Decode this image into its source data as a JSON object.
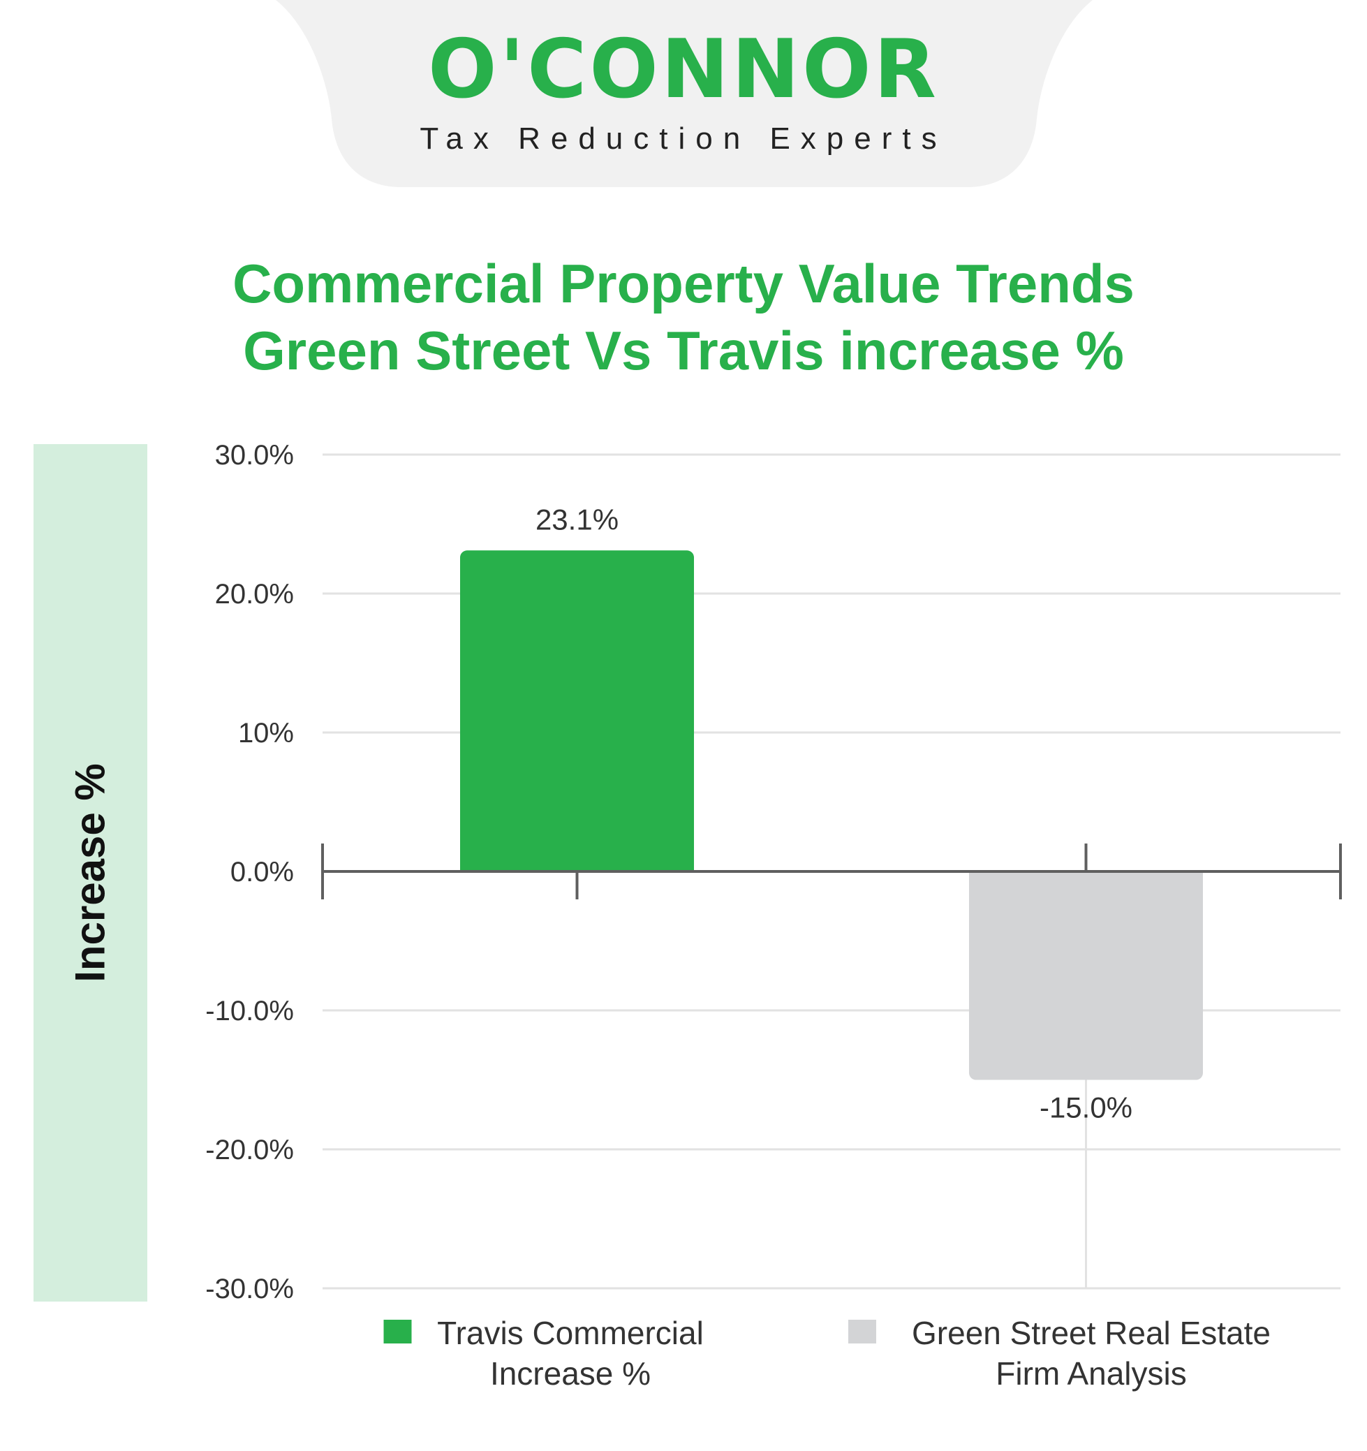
{
  "brand": {
    "name": "O'CONNOR",
    "tagline": "Tax Reduction Experts",
    "color": "#28b04b",
    "header_bg": "#f1f1f1"
  },
  "chart_data": {
    "type": "bar",
    "title_lines": [
      "Commercial Property Value Trends",
      "Green Street Vs Travis increase %"
    ],
    "ylabel": "Increase %",
    "xlabel": "",
    "ylim": [
      -30,
      30
    ],
    "yticks": [
      {
        "value": 30,
        "label": "30.0%"
      },
      {
        "value": 20,
        "label": "20.0%"
      },
      {
        "value": 10,
        "label": "10%"
      },
      {
        "value": 0,
        "label": "0.0%"
      },
      {
        "value": -10,
        "label": "-10.0%"
      },
      {
        "value": -20,
        "label": "-20.0%"
      },
      {
        "value": -30,
        "label": "-30.0%"
      }
    ],
    "grid": true,
    "legend_position": "bottom",
    "series": [
      {
        "name_lines": [
          "Travis Commercial",
          "Increase %"
        ],
        "value": 23.1,
        "label": "23.1%",
        "color": "#28b04b"
      },
      {
        "name_lines": [
          "Green Street Real Estate",
          "Firm Analysis"
        ],
        "value": -15.0,
        "label": "-15.0%",
        "color": "#d3d4d6"
      }
    ]
  }
}
